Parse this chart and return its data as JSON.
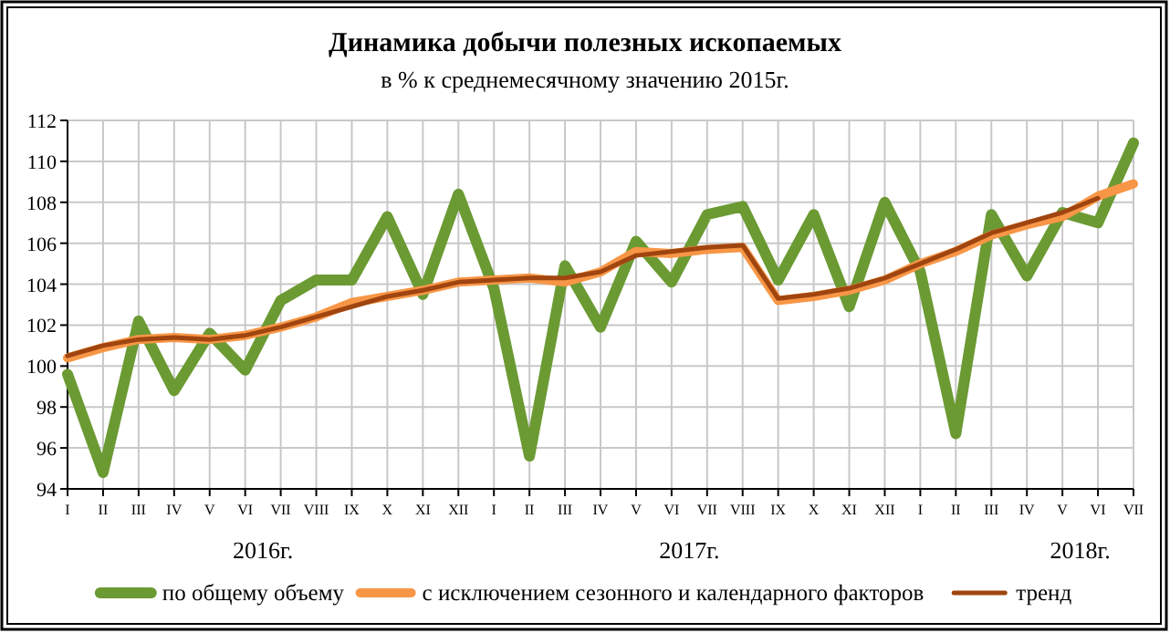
{
  "chart_data": {
    "type": "line",
    "title": "Динамика добычи полезных ископаемых",
    "subtitle": "в % к среднемесячному значению 2015г.",
    "categories": [
      "I",
      "II",
      "III",
      "IV",
      "V",
      "VI",
      "VII",
      "VIII",
      "IX",
      "X",
      "XI",
      "XII",
      "I",
      "II",
      "III",
      "IV",
      "V",
      "VI",
      "VII",
      "VIII",
      "IX",
      "X",
      "XI",
      "XII",
      "I",
      "II",
      "III",
      "IV",
      "V",
      "VI",
      "VII"
    ],
    "series": [
      {
        "name": "по общему объему",
        "color": "#6b9a33",
        "values": [
          99.6,
          94.8,
          102.2,
          98.8,
          101.6,
          99.8,
          103.2,
          104.2,
          104.2,
          107.3,
          103.5,
          108.4,
          103.8,
          95.6,
          104.9,
          101.9,
          106.1,
          104.1,
          107.4,
          107.8,
          104.2,
          107.4,
          102.9,
          108.0,
          104.6,
          96.7,
          107.4,
          104.4,
          107.5,
          107.0,
          110.9
        ]
      },
      {
        "name": "с исключением сезонного и календарного факторов",
        "color": "#f79646",
        "values": [
          100.4,
          100.9,
          101.3,
          101.4,
          101.3,
          101.5,
          101.9,
          102.4,
          103.1,
          103.4,
          103.7,
          104.1,
          104.2,
          104.3,
          104.1,
          104.6,
          105.6,
          105.5,
          105.7,
          105.8,
          103.2,
          103.4,
          103.7,
          104.2,
          105.0,
          105.6,
          106.4,
          106.9,
          107.3,
          108.3,
          108.9
        ]
      },
      {
        "name": "тренд",
        "color": "#a0450f",
        "values": [
          100.5,
          101.0,
          101.3,
          101.4,
          101.3,
          101.5,
          101.9,
          102.4,
          102.9,
          103.4,
          103.7,
          104.1,
          104.2,
          104.3,
          104.3,
          104.6,
          105.4,
          105.6,
          105.8,
          105.9,
          103.3,
          103.5,
          103.8,
          104.3,
          105.0,
          105.7,
          106.5,
          107.0,
          107.5,
          108.2,
          null
        ]
      }
    ],
    "ylim": [
      94,
      112
    ],
    "yticks": [
      94,
      96,
      98,
      100,
      102,
      104,
      106,
      108,
      110,
      112
    ],
    "grid": true,
    "legend": "bottom",
    "line_style": "solid",
    "annotations": [
      "2016г.",
      "2017г.",
      "2018г."
    ]
  }
}
